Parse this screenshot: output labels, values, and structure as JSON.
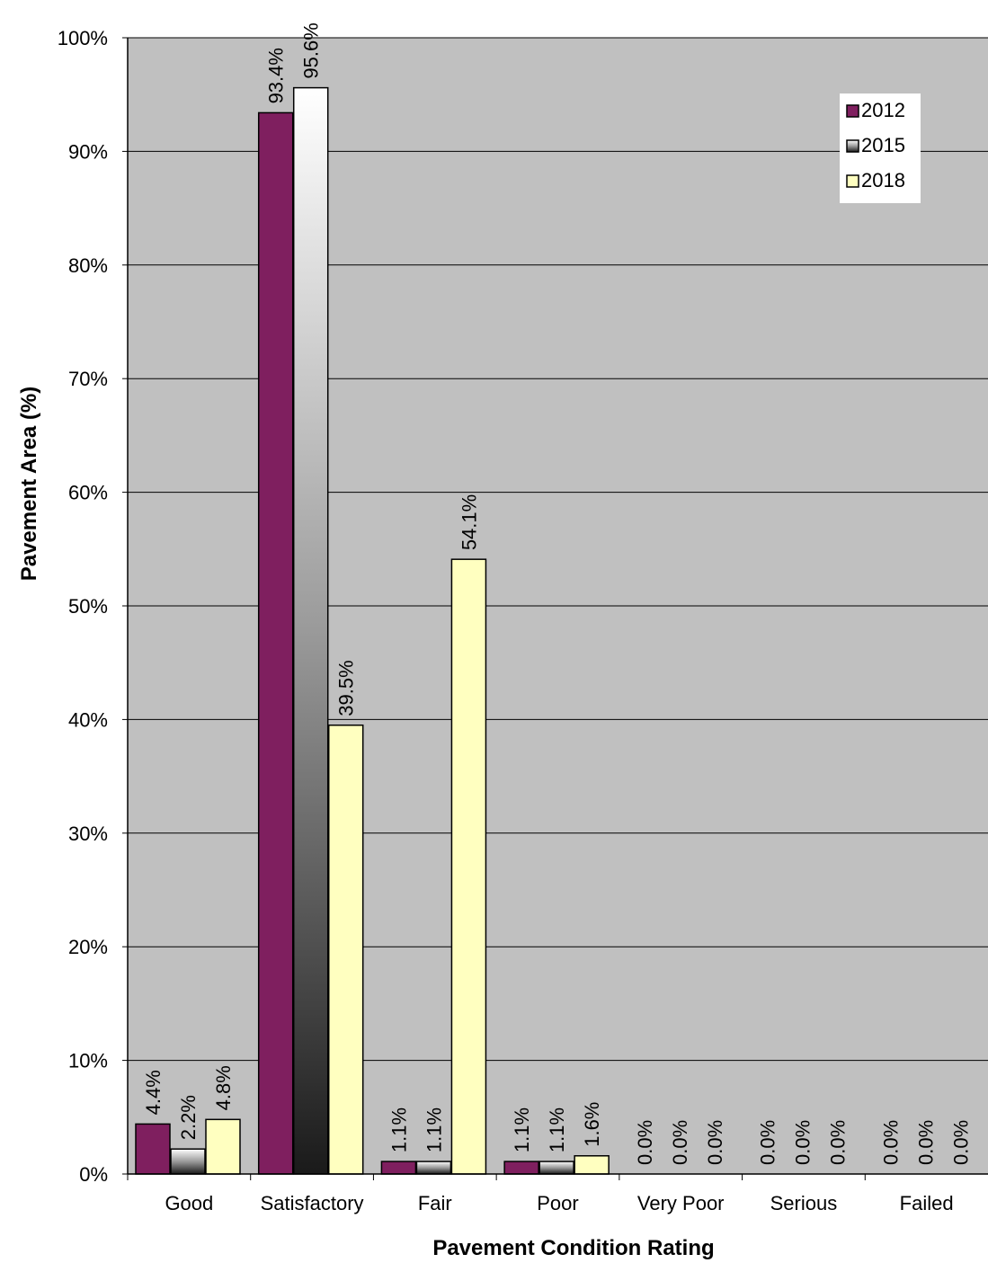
{
  "chart_data": {
    "type": "bar",
    "title": "",
    "xlabel": "Pavement Condition Rating",
    "ylabel": "Pavement Area (%)",
    "categories": [
      "Good",
      "Satisfactory",
      "Fair",
      "Poor",
      "Very Poor",
      "Serious",
      "Failed"
    ],
    "series": [
      {
        "name": "2012",
        "values": [
          4.4,
          93.4,
          1.1,
          1.1,
          0.0,
          0.0,
          0.0
        ],
        "color": "#7f1f5f"
      },
      {
        "name": "2015",
        "values": [
          2.2,
          95.6,
          1.1,
          1.1,
          0.0,
          0.0,
          0.0
        ],
        "color": "gradient-white-black"
      },
      {
        "name": "2018",
        "values": [
          4.8,
          39.5,
          54.1,
          1.6,
          0.0,
          0.0,
          0.0
        ],
        "color": "#ffffc0"
      }
    ],
    "data_labels": [
      [
        "4.4%",
        "93.4%",
        "1.1%",
        "1.1%",
        "0.0%",
        "0.0%",
        "0.0%"
      ],
      [
        "2.2%",
        "95.6%",
        "1.1%",
        "1.1%",
        "0.0%",
        "0.0%",
        "0.0%"
      ],
      [
        "4.8%",
        "39.5%",
        "54.1%",
        "1.6%",
        "0.0%",
        "0.0%",
        "0.0%"
      ]
    ],
    "yticks": [
      "0%",
      "10%",
      "20%",
      "30%",
      "40%",
      "50%",
      "60%",
      "70%",
      "80%",
      "90%",
      "100%"
    ],
    "ylim": [
      0,
      100
    ],
    "grid": true,
    "legend": "top-right",
    "plot_background": "#c0c0c0"
  }
}
